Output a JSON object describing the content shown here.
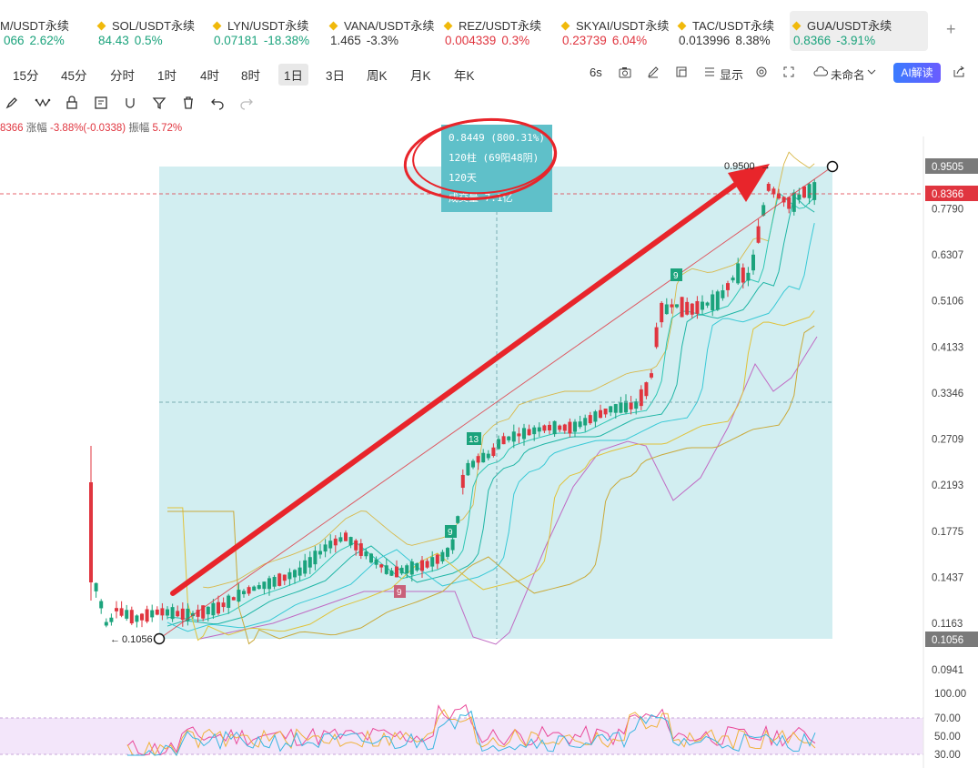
{
  "tickers": [
    {
      "symbol": "M/USDT永续",
      "price": "066",
      "change": "2.62%",
      "dir": "up",
      "active": false
    },
    {
      "symbol": "SOL/USDT永续",
      "price": "84.43",
      "change": "0.5%",
      "dir": "up",
      "active": false
    },
    {
      "symbol": "LYN/USDT永续",
      "price": "0.07181",
      "change": "-18.38%",
      "dir": "up",
      "active": false
    },
    {
      "symbol": "VANA/USDT永续",
      "price": "1.465",
      "change": "-3.3%",
      "dir": "nt",
      "active": false
    },
    {
      "symbol": "REZ/USDT永续",
      "price": "0.004339",
      "change": "0.3%",
      "dir": "dn",
      "active": false
    },
    {
      "symbol": "SKYAI/USDT永续",
      "price": "0.23739",
      "change": "6.04%",
      "dir": "dn",
      "active": false
    },
    {
      "symbol": "TAC/USDT永续",
      "price": "0.013996",
      "change": "8.38%",
      "dir": "nt",
      "active": false
    },
    {
      "symbol": "GUA/USDT永续",
      "price": "0.8366",
      "change": "-3.91%",
      "dir": "up",
      "active": true
    }
  ],
  "add_tab": "+",
  "intervals": [
    "15分",
    "45分",
    "分时",
    "1时",
    "4时",
    "8时",
    "1日",
    "3日",
    "周K",
    "月K",
    "年K"
  ],
  "active_interval": "1日",
  "right_toolbar": {
    "refresh": "6s",
    "display": "显示",
    "layout_name": "未命名",
    "ai_button": "AI解读"
  },
  "ohlc": {
    "close": "8366",
    "change_label": "涨幅",
    "change": "-3.88%(-0.0338)",
    "amp_label": "振幅",
    "amp": "5.72%"
  },
  "measure": {
    "line1": "0.8449 (800.31%)",
    "line2": "120柱 (69阳48阴)",
    "line3": "120天",
    "line4": "成交量 7.1亿"
  },
  "labels": {
    "high_price": "0.9500",
    "low_price": "0.1056",
    "marker_9a": "9",
    "marker_13": "13",
    "marker_9b": "9",
    "marker_9c": "9"
  },
  "colors": {
    "up": "#1ba37c",
    "down": "#e0353f",
    "measure_bg": "#cdecef",
    "measure_box": "#5fc0c9",
    "annotation": "#e8252b"
  },
  "chart_data": {
    "type": "candlestick",
    "scale": "log",
    "price_axis_ticks": [
      "0.9505",
      "0.7790",
      "0.6307",
      "0.5106",
      "0.4133",
      "0.3346",
      "0.2709",
      "0.2193",
      "0.1775",
      "0.1437",
      "0.1163",
      "0.0941"
    ],
    "current_price": "0.8366",
    "range_start_price": "0.1056",
    "range_end_price": "0.9505",
    "ylim": [
      0.088,
      1.05
    ],
    "rsi_axis_ticks": [
      "100.00",
      "70.00",
      "50.00",
      "30.00"
    ],
    "rsi_band": [
      30,
      70
    ]
  }
}
